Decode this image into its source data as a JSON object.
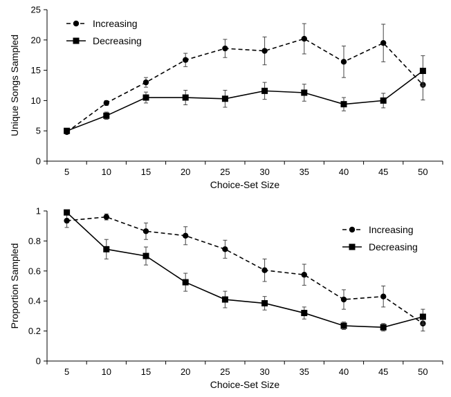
{
  "chart_data": [
    {
      "type": "line",
      "title": "",
      "xlabel": "Choice-Set Size",
      "ylabel": "Unique Songs Sampled",
      "x": [
        5,
        10,
        15,
        20,
        25,
        30,
        35,
        40,
        45,
        50
      ],
      "xlim": [
        2.5,
        52.5
      ],
      "ylim": [
        0,
        25
      ],
      "yticks": [
        0,
        5,
        10,
        15,
        20,
        25
      ],
      "grid": false,
      "legend_position": "top-left",
      "series": [
        {
          "name": "Increasing",
          "marker": "circle",
          "line_style": "dashed",
          "values": [
            4.8,
            9.6,
            13.0,
            16.7,
            18.6,
            18.2,
            20.2,
            16.4,
            19.5,
            12.6
          ],
          "error": [
            0.3,
            0.4,
            0.8,
            1.1,
            1.5,
            2.3,
            2.5,
            2.6,
            3.1,
            2.5
          ]
        },
        {
          "name": "Decreasing",
          "marker": "square",
          "line_style": "solid",
          "values": [
            5.0,
            7.5,
            10.5,
            10.5,
            10.3,
            11.6,
            11.3,
            9.4,
            10.0,
            14.9
          ],
          "error": [
            0.2,
            0.6,
            0.9,
            1.2,
            1.4,
            1.4,
            1.4,
            1.1,
            1.2,
            2.5
          ]
        }
      ]
    },
    {
      "type": "line",
      "title": "",
      "xlabel": "Choice-Set Size",
      "ylabel": "Proportion Sampled",
      "x": [
        5,
        10,
        15,
        20,
        25,
        30,
        35,
        40,
        45,
        50
      ],
      "xlim": [
        2.5,
        52.5
      ],
      "ylim": [
        0,
        1
      ],
      "yticks": [
        0,
        0.2,
        0.4,
        0.6,
        0.8,
        1
      ],
      "grid": false,
      "legend_position": "top-right",
      "series": [
        {
          "name": "Increasing",
          "marker": "circle",
          "line_style": "dashed",
          "values": [
            0.935,
            0.96,
            0.865,
            0.835,
            0.745,
            0.605,
            0.575,
            0.41,
            0.43,
            0.25
          ],
          "error": [
            0.045,
            0.02,
            0.055,
            0.06,
            0.06,
            0.075,
            0.07,
            0.065,
            0.07,
            0.05
          ]
        },
        {
          "name": "Decreasing",
          "marker": "square",
          "line_style": "solid",
          "values": [
            0.99,
            0.745,
            0.7,
            0.525,
            0.41,
            0.385,
            0.32,
            0.235,
            0.225,
            0.295
          ],
          "error": [
            0.01,
            0.065,
            0.06,
            0.06,
            0.055,
            0.045,
            0.04,
            0.025,
            0.025,
            0.05
          ]
        }
      ]
    }
  ]
}
